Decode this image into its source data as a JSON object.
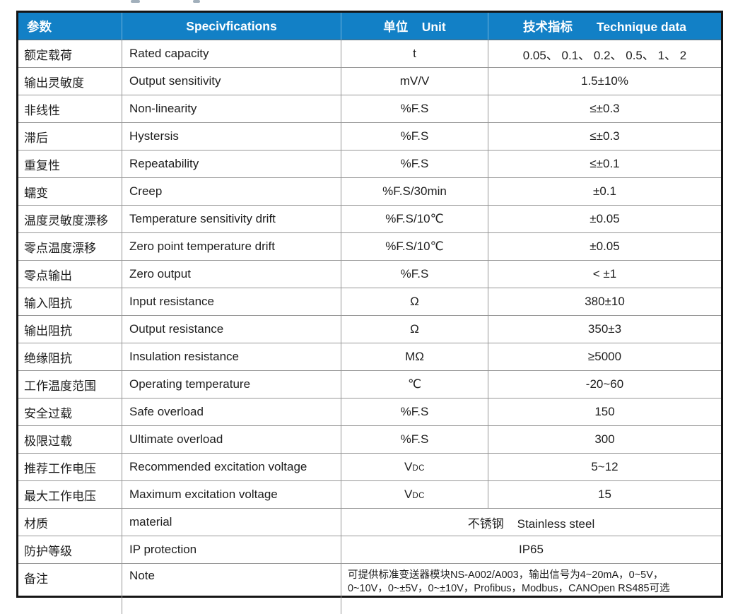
{
  "table": {
    "headers": [
      "参数",
      "Specivfications",
      "单位    Unit",
      "技术指标       Technique data"
    ],
    "rows": [
      {
        "cn": "额定载荷",
        "en": "Rated capacity",
        "unit": "t",
        "value": "0.05、 0.1、 0.2、 0.5、 1、 2"
      },
      {
        "cn": "输出灵敏度",
        "en": "Output sensitivity",
        "unit": "mV/V",
        "value": "1.5±10%"
      },
      {
        "cn": "非线性",
        "en": "Non-linearity",
        "unit": "%F.S",
        "value": "≤±0.3"
      },
      {
        "cn": "滞后",
        "en": "Hystersis",
        "unit": "%F.S",
        "value": "≤±0.3"
      },
      {
        "cn": "重复性",
        "en": "Repeatability",
        "unit": "%F.S",
        "value": "≤±0.1"
      },
      {
        "cn": "蠕变",
        "en": "Creep",
        "unit": "%F.S/30min",
        "value": "±0.1"
      },
      {
        "cn": "温度灵敏度漂移",
        "en": "Temperature sensitivity drift",
        "unit": "%F.S/10℃",
        "value": "±0.05"
      },
      {
        "cn": "零点温度漂移",
        "en": "Zero point temperature drift",
        "unit": "%F.S/10℃",
        "value": "±0.05"
      },
      {
        "cn": "零点输出",
        "en": "Zero output",
        "unit": "%F.S",
        "value": "< ±1"
      },
      {
        "cn": "输入阻抗",
        "en": "Input resistance",
        "unit": "Ω",
        "value": "380±10"
      },
      {
        "cn": "输出阻抗",
        "en": "Output resistance",
        "unit": "Ω",
        "value": "350±3"
      },
      {
        "cn": "绝缘阻抗",
        "en": "Insulation resistance",
        "unit": "MΩ",
        "value": "≥5000"
      },
      {
        "cn": "工作温度范围",
        "en": "Operating temperature",
        "unit": "℃",
        "value": "-20~60"
      },
      {
        "cn": "安全过载",
        "en": "Safe overload",
        "unit": "%F.S",
        "value": "150"
      },
      {
        "cn": "极限过载",
        "en": "Ultimate overload",
        "unit": "%F.S",
        "value": "300"
      },
      {
        "cn": "推荐工作电压",
        "en": "Recommended excitation voltage",
        "unit": "V",
        "unit_small": "DC",
        "value": "5~12"
      },
      {
        "cn": "最大工作电压",
        "en": "Maximum excitation voltage",
        "unit": "V",
        "unit_small": "DC",
        "value": "15"
      },
      {
        "cn": "材质",
        "en": "material",
        "merged": "不锈钢    Stainless steel",
        "merged_align": "center"
      },
      {
        "cn": "防护等级",
        "en": "IP protection",
        "merged": "IP65",
        "merged_align": "center"
      },
      {
        "cn": "备注",
        "en": "Note",
        "merged": "可提供标准变送器模块NS-A002/A003，输出信号为4~20mA，0~5V，\n0~10V，0~±5V，0~±10V，Profibus，Modbus，CANOpen RS485可选",
        "merged_align": "left",
        "tall": true
      }
    ],
    "colors": {
      "header_bg": "#1280c6",
      "header_text": "#ffffff",
      "grid": "#979797",
      "outer_border": "#151515",
      "body_text": "#1e1e1e"
    }
  }
}
